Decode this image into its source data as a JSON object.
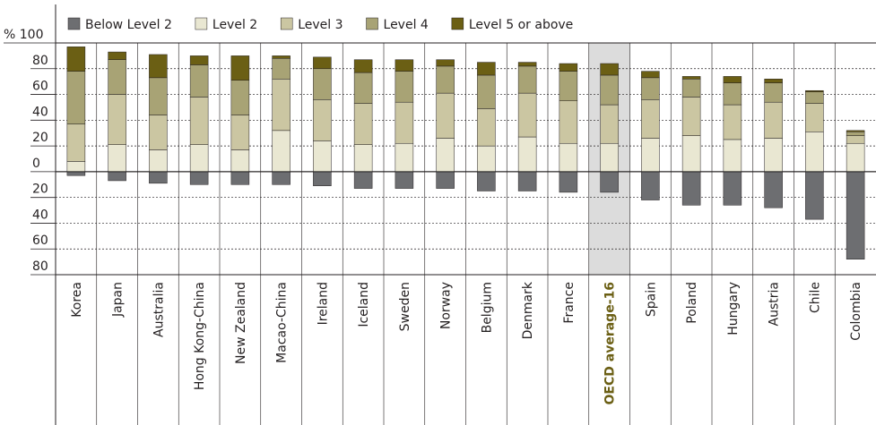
{
  "chart_data": {
    "type": "stacked-bar",
    "categories": [
      "Korea",
      "Japan",
      "Australia",
      "Hong Kong-China",
      "New Zealand",
      "Macao-China",
      "Ireland",
      "Iceland",
      "Sweden",
      "Norway",
      "Belgium",
      "Denmark",
      "France",
      "OECD average-16",
      "Spain",
      "Poland",
      "Hungary",
      "Austria",
      "Chile",
      "Colombia"
    ],
    "series": [
      {
        "name": "Below Level 2",
        "color": "#6d6e71",
        "values": [
          -3,
          -7,
          -9,
          -10,
          -10,
          -10,
          -11,
          -13,
          -13,
          -13,
          -15,
          -15,
          -16,
          -16,
          -22,
          -26,
          -26,
          -28,
          -37,
          -68
        ]
      },
      {
        "name": "Level 2",
        "color": "#e9e7d2",
        "values": [
          8,
          21,
          17,
          21,
          17,
          32,
          24,
          21,
          22,
          26,
          20,
          27,
          22,
          22,
          26,
          28,
          25,
          26,
          31,
          22
        ]
      },
      {
        "name": "Level 3",
        "color": "#cbc6a2",
        "values": [
          29,
          39,
          27,
          37,
          27,
          40,
          32,
          32,
          32,
          35,
          29,
          34,
          33,
          30,
          30,
          30,
          27,
          28,
          22,
          6
        ]
      },
      {
        "name": "Level 4",
        "color": "#a8a375",
        "values": [
          41,
          27,
          29,
          25,
          27,
          16,
          24,
          24,
          24,
          21,
          26,
          21,
          23,
          23,
          17,
          14,
          17,
          15,
          9,
          3
        ]
      },
      {
        "name": "Level 5 or above",
        "color": "#6b5f14",
        "values": [
          19,
          6,
          18,
          7,
          19,
          2,
          9,
          10,
          9,
          5,
          10,
          3,
          6,
          9,
          5,
          2,
          5,
          3,
          1,
          1
        ]
      }
    ],
    "ylim": [
      -80,
      100
    ],
    "yticks": [
      {
        "value": 100,
        "label": "% 100"
      },
      80,
      60,
      40,
      20,
      0,
      {
        "value": -20,
        "label": "20"
      },
      {
        "value": -40,
        "label": "40"
      },
      {
        "value": -60,
        "label": "60"
      },
      {
        "value": -80,
        "label": "80"
      }
    ],
    "grid": true,
    "legend": "top",
    "highlight": {
      "index": 13,
      "color": "#dcdcdc",
      "label_color": "#6b5f14"
    }
  }
}
